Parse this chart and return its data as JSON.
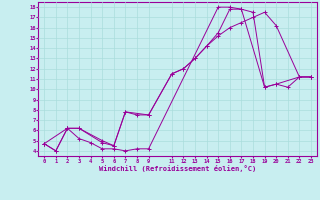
{
  "xlabel": "Windchill (Refroidissement éolien,°C)",
  "bg_color": "#c8eef0",
  "line_color": "#990099",
  "grid_color": "#aadddd",
  "xlim": [
    -0.5,
    23.5
  ],
  "ylim": [
    3.5,
    18.5
  ],
  "xticks": [
    0,
    1,
    2,
    3,
    4,
    5,
    6,
    7,
    8,
    9,
    11,
    12,
    13,
    14,
    15,
    16,
    17,
    18,
    19,
    20,
    21,
    22,
    23
  ],
  "yticks": [
    4,
    5,
    6,
    7,
    8,
    9,
    10,
    11,
    12,
    13,
    14,
    15,
    16,
    17,
    18
  ],
  "line1_x": [
    0,
    1,
    2,
    3,
    4,
    5,
    6,
    7,
    8,
    9,
    15,
    16,
    17,
    19,
    20,
    21,
    22,
    23
  ],
  "line1_y": [
    4.7,
    4.0,
    6.2,
    5.2,
    4.8,
    4.2,
    4.2,
    4.0,
    4.2,
    4.2,
    18.0,
    18.0,
    17.8,
    10.2,
    10.5,
    10.2,
    11.2,
    11.2
  ],
  "line2_x": [
    0,
    1,
    2,
    3,
    5,
    6,
    7,
    8,
    9,
    11,
    12,
    13,
    14,
    15,
    16,
    17,
    18,
    19,
    20,
    22,
    23
  ],
  "line2_y": [
    4.7,
    4.0,
    6.2,
    6.2,
    4.8,
    4.5,
    7.8,
    7.5,
    7.5,
    11.5,
    12.0,
    13.0,
    14.2,
    15.2,
    16.0,
    16.5,
    17.0,
    17.5,
    16.2,
    11.2,
    11.2
  ],
  "line3_x": [
    0,
    2,
    3,
    5,
    6,
    7,
    9,
    11,
    12,
    13,
    14,
    15,
    16,
    17,
    18,
    19,
    20,
    22,
    23
  ],
  "line3_y": [
    4.7,
    6.2,
    6.2,
    5.0,
    4.5,
    7.8,
    7.5,
    11.5,
    12.0,
    13.0,
    14.2,
    15.5,
    17.8,
    17.8,
    17.5,
    10.2,
    10.5,
    11.2,
    11.2
  ]
}
